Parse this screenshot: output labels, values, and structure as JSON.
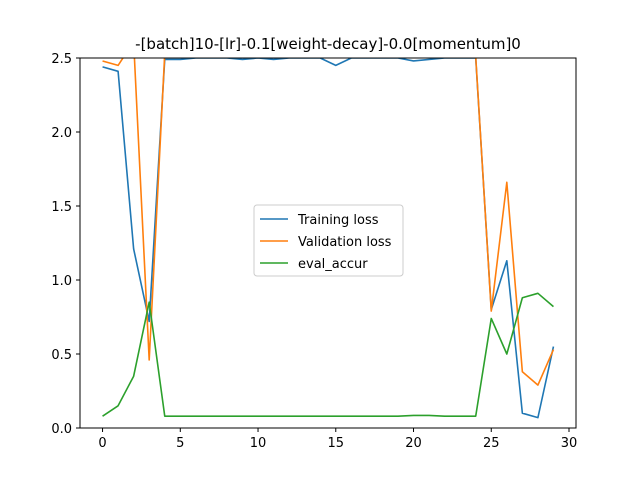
{
  "chart_data": {
    "type": "line",
    "title": "-[batch]10-[lr]-0.1[weight-decay]-0.0[momentum]0",
    "xlabel": "",
    "ylabel": "",
    "xlim": [
      -1.45,
      30.45
    ],
    "ylim": [
      0.0,
      2.5
    ],
    "xticks": [
      0,
      5,
      10,
      15,
      20,
      25,
      30
    ],
    "yticks": [
      0.0,
      0.5,
      1.0,
      1.5,
      2.0,
      2.5
    ],
    "xtick_labels": [
      "0",
      "5",
      "10",
      "15",
      "20",
      "25",
      "30"
    ],
    "ytick_labels": [
      "0.0",
      "0.5",
      "1.0",
      "1.5",
      "2.0",
      "2.5"
    ],
    "grid": false,
    "legend_position": "center",
    "x": [
      0,
      1,
      2,
      3,
      4,
      5,
      6,
      7,
      8,
      9,
      10,
      11,
      12,
      13,
      14,
      15,
      16,
      17,
      18,
      19,
      20,
      21,
      22,
      23,
      24,
      25,
      26,
      27,
      28,
      29
    ],
    "series": [
      {
        "name": "Training loss",
        "color": "#1f77b4",
        "values": [
          2.44,
          2.41,
          1.21,
          0.72,
          2.49,
          2.49,
          2.5,
          2.5,
          2.5,
          2.49,
          2.5,
          2.49,
          2.5,
          2.5,
          2.5,
          2.45,
          2.5,
          2.5,
          2.5,
          2.5,
          2.48,
          2.49,
          2.5,
          2.5,
          2.5,
          0.8,
          1.13,
          0.1,
          0.07,
          0.55
        ]
      },
      {
        "name": "Validation loss",
        "color": "#ff7f0e",
        "values": [
          2.48,
          2.45,
          2.61,
          0.46,
          2.53,
          2.53,
          2.51,
          2.51,
          2.51,
          2.51,
          2.51,
          2.51,
          2.51,
          2.51,
          2.51,
          2.51,
          2.51,
          2.51,
          2.51,
          2.51,
          2.51,
          2.51,
          2.51,
          2.51,
          2.51,
          0.79,
          1.66,
          0.38,
          0.29,
          0.53
        ]
      },
      {
        "name": "eval_accur",
        "color": "#2ca02c",
        "values": [
          0.08,
          0.15,
          0.35,
          0.85,
          0.08,
          0.08,
          0.08,
          0.08,
          0.08,
          0.08,
          0.08,
          0.08,
          0.08,
          0.08,
          0.08,
          0.08,
          0.08,
          0.08,
          0.08,
          0.08,
          0.085,
          0.085,
          0.08,
          0.08,
          0.08,
          0.74,
          0.5,
          0.88,
          0.91,
          0.82
        ]
      }
    ]
  }
}
